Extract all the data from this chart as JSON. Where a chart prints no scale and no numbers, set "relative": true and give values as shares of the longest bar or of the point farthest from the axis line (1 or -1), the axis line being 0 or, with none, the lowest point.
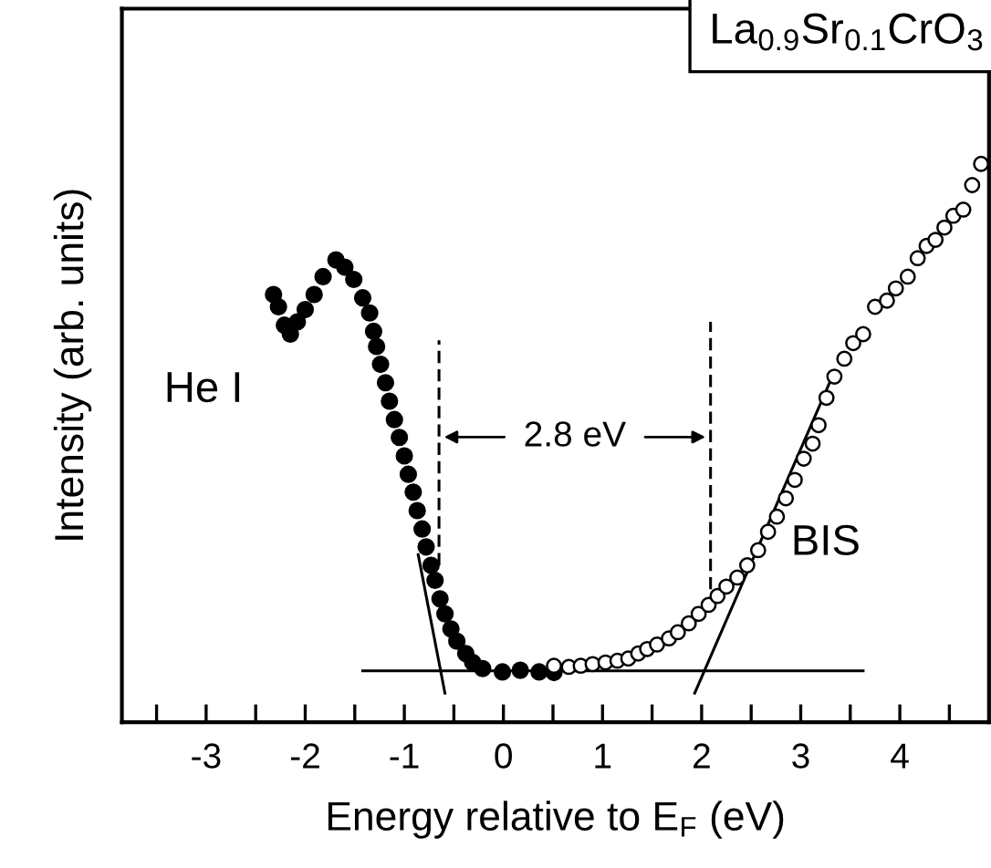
{
  "chart_data": {
    "type": "scatter",
    "title": "La$_{0.9}$Sr$_{0.1}$CrO$_{3}$",
    "xlabel": "Energy relative to E$_{F}$ (eV)",
    "ylabel": "Intensity (arb. units)",
    "relative": true,
    "legend": false,
    "grid": false,
    "xlim": [
      -3.85,
      4.9
    ],
    "xticks": [
      {
        "value": -3.5,
        "label": null
      },
      -3,
      {
        "value": -2.5,
        "label": null
      },
      -2,
      {
        "value": -1.5,
        "label": null
      },
      -1,
      {
        "value": -0.5,
        "label": null
      },
      0,
      {
        "value": 0.5,
        "label": null
      },
      1,
      {
        "value": 1.5,
        "label": null
      },
      2,
      {
        "value": 2.5,
        "label": null
      },
      3,
      {
        "value": 3.5,
        "label": null
      },
      4,
      {
        "value": 4.5,
        "label": null
      }
    ],
    "tick_labels": "x",
    "annotations": [
      "2.8 eV"
    ],
    "series": [
      {
        "name": "He I",
        "marker": "circle",
        "color": "#000000",
        "x": [
          -2.32,
          -2.27,
          -2.21,
          -2.15,
          -2.08,
          -2.0,
          -1.91,
          -1.82,
          -1.69,
          -1.6,
          -1.51,
          -1.42,
          -1.35,
          -1.31,
          -1.28,
          -1.24,
          -1.19,
          -1.15,
          -1.1,
          -1.05,
          -1.0,
          -0.96,
          -0.91,
          -0.87,
          -0.82,
          -0.78,
          -0.73,
          -0.69,
          -0.64,
          -0.59,
          -0.53,
          -0.47,
          -0.38,
          -0.31,
          -0.21,
          -0.01,
          0.17,
          0.36,
          0.51
        ],
        "values": [
          0.766,
          0.744,
          0.711,
          0.695,
          0.717,
          0.739,
          0.766,
          0.798,
          0.828,
          0.815,
          0.793,
          0.76,
          0.733,
          0.7,
          0.673,
          0.641,
          0.608,
          0.575,
          0.542,
          0.51,
          0.477,
          0.444,
          0.412,
          0.379,
          0.346,
          0.314,
          0.281,
          0.254,
          0.221,
          0.194,
          0.167,
          0.145,
          0.123,
          0.107,
          0.096,
          0.09,
          0.093,
          0.09,
          0.089
        ]
      },
      {
        "name": "BIS",
        "marker": "circle",
        "color": "#000000",
        "x": [
          0.51,
          0.66,
          0.78,
          0.9,
          1.03,
          1.15,
          1.26,
          1.36,
          1.45,
          1.55,
          1.67,
          1.76,
          1.87,
          1.97,
          2.07,
          2.16,
          2.25,
          2.36,
          2.46,
          2.57,
          2.67,
          2.76,
          2.85,
          2.94,
          3.03,
          3.12,
          3.18,
          3.26,
          3.34,
          3.44,
          3.53,
          3.63,
          3.75,
          3.87,
          3.96,
          4.08,
          4.18,
          4.27,
          4.36,
          4.45,
          4.54,
          4.64,
          4.73,
          4.82
        ],
        "values": [
          0.101,
          0.099,
          0.101,
          0.104,
          0.107,
          0.11,
          0.114,
          0.123,
          0.131,
          0.139,
          0.15,
          0.161,
          0.177,
          0.194,
          0.21,
          0.226,
          0.243,
          0.259,
          0.281,
          0.308,
          0.341,
          0.368,
          0.401,
          0.434,
          0.472,
          0.499,
          0.532,
          0.581,
          0.619,
          0.651,
          0.679,
          0.695,
          0.744,
          0.755,
          0.777,
          0.798,
          0.831,
          0.853,
          0.864,
          0.886,
          0.907,
          0.918,
          0.962,
          1.0
        ]
      },
      {
        "type": "line",
        "color": "#000000",
        "line_style": "solid",
        "x": [
          -1.42,
          3.63
        ],
        "values": [
          0.092,
          0.092
        ]
      },
      {
        "type": "line",
        "color": "#000000",
        "line_style": "solid",
        "x": [
          -0.59,
          -0.86
        ],
        "values": [
          0.052,
          0.3
        ]
      },
      {
        "type": "line",
        "color": "#000000",
        "line_style": "solid",
        "x": [
          1.93,
          3.32
        ],
        "values": [
          0.052,
          0.62
        ]
      },
      {
        "type": "line",
        "color": "#000000",
        "line_style": "dashed",
        "x": [
          -0.65,
          -0.65
        ],
        "values": [
          0.281,
          0.684
        ]
      },
      {
        "type": "line",
        "color": "#000000",
        "line_style": "dashed",
        "x": [
          2.09,
          2.09
        ],
        "values": [
          0.238,
          0.717
        ]
      }
    ]
  }
}
